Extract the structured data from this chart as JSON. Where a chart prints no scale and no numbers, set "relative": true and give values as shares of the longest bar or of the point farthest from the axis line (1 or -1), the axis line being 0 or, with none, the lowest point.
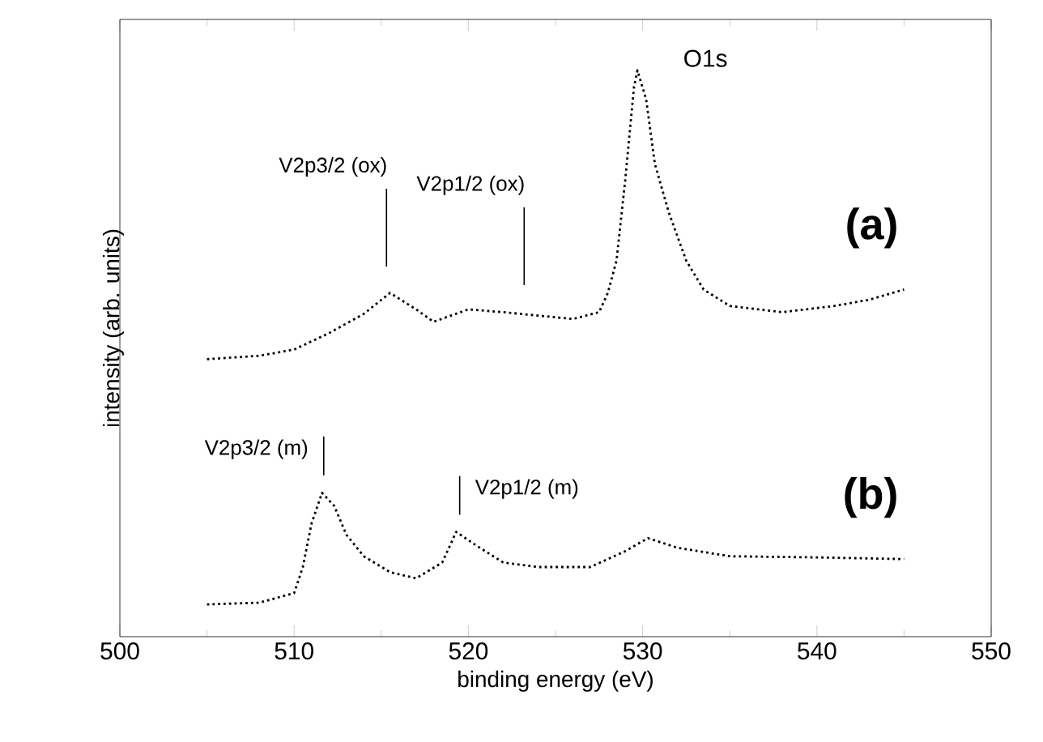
{
  "chart_data": {
    "type": "line",
    "relative": true,
    "line_style": "dotted",
    "xlabel": "binding energy (eV)",
    "ylabel": "intensity (arb. units)",
    "xlim": [
      500,
      550
    ],
    "xticks": [
      500,
      510,
      520,
      530,
      540,
      550
    ],
    "series": [
      {
        "name": "(a)",
        "color": "#000000",
        "x": [
          505,
          508,
          510,
          512,
          514,
          515.5,
          517,
          518,
          520,
          522,
          524,
          526,
          527.5,
          528,
          528.5,
          529,
          529.5,
          529.7,
          530.2,
          530.7,
          531.5,
          532.5,
          533.5,
          535,
          538,
          541,
          543,
          545
        ],
        "values": [
          0.49,
          0.496,
          0.507,
          0.536,
          0.57,
          0.607,
          0.578,
          0.556,
          0.578,
          0.573,
          0.567,
          0.561,
          0.573,
          0.607,
          0.664,
          0.806,
          0.97,
          1.0,
          0.949,
          0.835,
          0.749,
          0.664,
          0.613,
          0.584,
          0.573,
          0.584,
          0.595,
          0.613
        ]
      },
      {
        "name": "(b)",
        "color": "#000000",
        "x": [
          505,
          508,
          510,
          510.5,
          511,
          511.6,
          512.3,
          513,
          514,
          515.5,
          517,
          518.5,
          519.3,
          520.5,
          522,
          524,
          527,
          529,
          530.3,
          532,
          535,
          540,
          545
        ],
        "values": [
          0.057,
          0.06,
          0.077,
          0.123,
          0.2,
          0.254,
          0.231,
          0.18,
          0.142,
          0.114,
          0.103,
          0.131,
          0.185,
          0.16,
          0.131,
          0.123,
          0.123,
          0.151,
          0.174,
          0.157,
          0.142,
          0.14,
          0.137
        ]
      }
    ],
    "annotations": [
      "O1s"
    ],
    "ref_lines": [
      {
        "axis": "x",
        "value": 515.3,
        "label": "V2p3/2 (ox)"
      },
      {
        "axis": "x",
        "value": 523.2,
        "label": "V2p1/2 (ox)"
      },
      {
        "axis": "x",
        "value": 511.7,
        "label": "V2p3/2 (m)"
      },
      {
        "axis": "x",
        "value": 519.5,
        "label": "V2p1/2 (m)"
      }
    ]
  }
}
